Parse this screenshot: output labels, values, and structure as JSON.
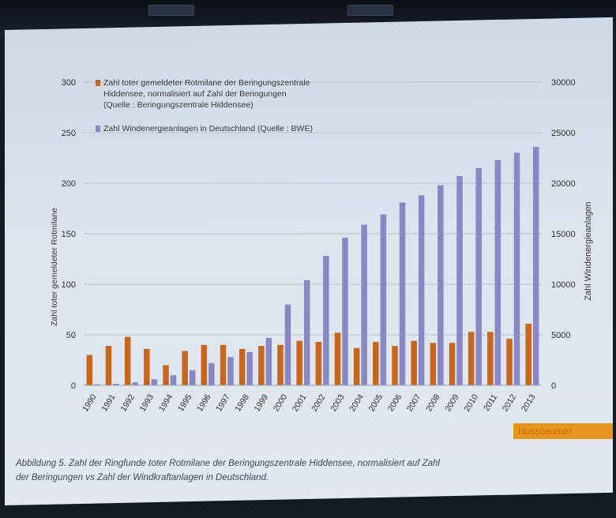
{
  "chart_data": {
    "type": "bar",
    "categories": [
      "1990",
      "1991",
      "1992",
      "1993",
      "1994",
      "1995",
      "1996",
      "1997",
      "1998",
      "1999",
      "2000",
      "2001",
      "2002",
      "2003",
      "2004",
      "2005",
      "2006",
      "2007",
      "2008",
      "2009",
      "2010",
      "2011",
      "2012",
      "2013"
    ],
    "series": [
      {
        "name": "Zahl toter gemeldeter Rotmilane der Beringungszentrale Hiddensee, normalisiert auf Zahl der Beringungen (Quelle : Beringungszentrale Hiddensee)",
        "axis": "left",
        "color": "#c8661c",
        "values": [
          30,
          39,
          48,
          36,
          20,
          34,
          40,
          40,
          36,
          39,
          40,
          44,
          43,
          52,
          37,
          43,
          39,
          44,
          42,
          42,
          53,
          53,
          46,
          61
        ]
      },
      {
        "name": "Zahl Windenergieanlagen in Deutschland (Quelle : BWE)",
        "axis": "right",
        "color": "#8888c4",
        "values": [
          100,
          150,
          300,
          600,
          1000,
          1500,
          2200,
          2800,
          3300,
          4700,
          8000,
          10400,
          12800,
          14600,
          15900,
          16900,
          18100,
          18800,
          19800,
          20700,
          21500,
          22300,
          23000,
          23600
        ]
      }
    ],
    "y_left": {
      "label": "Zahl toter gemeldeter Rotmilane",
      "ylim": [
        0,
        300
      ],
      "ticks": [
        "0",
        "50",
        "100",
        "150",
        "200",
        "250",
        "300"
      ]
    },
    "y_right": {
      "label": "Zahl Windenergieanlagen",
      "ylim": [
        0,
        30000
      ],
      "ticks": [
        "0",
        "5000",
        "10000",
        "15000",
        "20000",
        "25000",
        "30000"
      ]
    },
    "grid": true,
    "legend_position": "top-left"
  },
  "legend": {
    "kite_lines": [
      "Zahl toter gemeldeter Rotmilane der Beringungszentrale",
      "Hiddensee, normalisiert auf Zahl der Beringungen",
      "(Quelle : Beringungszentrale Hiddensee)"
    ],
    "turbine_line": "Zahl Windenergieanlagen in Deutschland (Quelle : BWE)"
  },
  "attribution": "Nussbaumer",
  "caption": {
    "line1": "Abbildung 5. Zahl der Ringfunde toter Rotmilane der Beringungszentrale Hiddensee, normalisiert auf Zahl",
    "line2": "der Beringungen vs Zahl der Windkraftanlagen in Deutschland."
  },
  "colors": {
    "kite": "#c8661c",
    "turbines": "#8888c4",
    "attribution_bg": "#e8951e"
  }
}
